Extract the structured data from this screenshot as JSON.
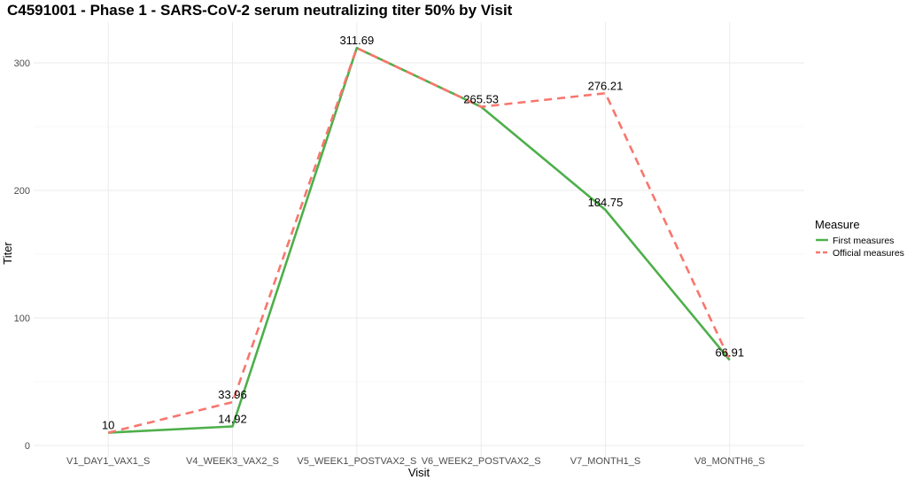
{
  "chart_data": {
    "type": "line",
    "title": "C4591001 - Phase 1 - SARS-CoV-2 serum neutralizing titer 50% by Visit",
    "xlabel": "Visit",
    "ylabel": "Titer",
    "categories": [
      "V1_DAY1_VAX1_S",
      "V4_WEEK3_VAX2_S",
      "V5_WEEK1_POSTVAX2_S",
      "V6_WEEK2_POSTVAX2_S",
      "V7_MONTH1_S",
      "V8_MONTH6_S"
    ],
    "ylim": [
      0,
      330
    ],
    "yticks": [
      0,
      100,
      200,
      300
    ],
    "grid": true,
    "legend": {
      "title": "Measure",
      "position": "right"
    },
    "series": [
      {
        "name": "First measures",
        "values": [
          10,
          14.92,
          311.69,
          265.53,
          184.75,
          66.91
        ],
        "color": "#4daf4a",
        "dash": "solid"
      },
      {
        "name": "Official measures",
        "values": [
          10,
          33.96,
          311.69,
          265.53,
          276.21,
          66.91
        ],
        "color": "#f8766d",
        "dash": "dashed"
      }
    ],
    "data_labels": [
      {
        "category": "V1_DAY1_VAX1_S",
        "value": 10,
        "text": "10"
      },
      {
        "category": "V4_WEEK3_VAX2_S",
        "value": 33.96,
        "text": "33.96"
      },
      {
        "category": "V4_WEEK3_VAX2_S",
        "value": 14.92,
        "text": "14.92"
      },
      {
        "category": "V5_WEEK1_POSTVAX2_S",
        "value": 311.69,
        "text": "311.69"
      },
      {
        "category": "V6_WEEK2_POSTVAX2_S",
        "value": 265.53,
        "text": "265.53"
      },
      {
        "category": "V7_MONTH1_S",
        "value": 276.21,
        "text": "276.21"
      },
      {
        "category": "V7_MONTH1_S",
        "value": 184.75,
        "text": "184.75"
      },
      {
        "category": "V8_MONTH6_S",
        "value": 66.91,
        "text": "66.91"
      }
    ]
  }
}
